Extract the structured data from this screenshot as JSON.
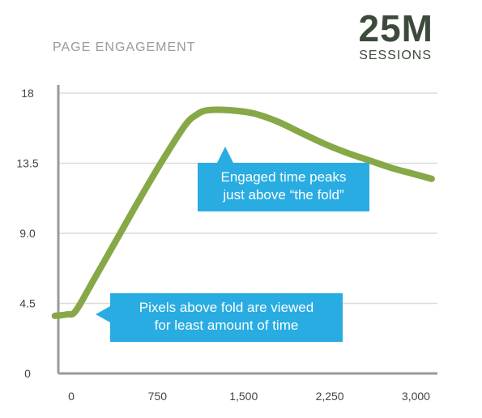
{
  "header": {
    "title": "PAGE ENGAGEMENT",
    "stat_value": "25M",
    "stat_label": "SESSIONS"
  },
  "annotations": [
    {
      "line1": "Engaged time peaks",
      "line2": "just above “the fold”"
    },
    {
      "line1": "Pixels above fold are viewed",
      "line2": "for least amount of time"
    }
  ],
  "colors": {
    "line": "#86a846",
    "callout": "#28ace2",
    "grid": "#dcdcdc",
    "axis": "#9a9a9a"
  },
  "chart_data": {
    "type": "line",
    "title": "PAGE ENGAGEMENT",
    "xlabel": "",
    "ylabel": "",
    "xlim": [
      0,
      3300
    ],
    "ylim": [
      0,
      18
    ],
    "xticks": [
      0,
      750,
      1500,
      2250,
      3000
    ],
    "xtick_labels": [
      "0",
      "750",
      "1,500",
      "2,250",
      "3,000"
    ],
    "yticks": [
      0,
      4.5,
      9,
      13.5,
      18
    ],
    "ytick_labels": [
      "0",
      "4.5",
      "9.0",
      "13.5",
      "18"
    ],
    "grid": "horizontal",
    "series": [
      {
        "x": [
          -30,
          80,
          150,
          300,
          500,
          700,
          900,
          1100,
          1200,
          1300,
          1500,
          1700,
          1900,
          2100,
          2300,
          2500,
          2700,
          2900,
          3100,
          3250
        ],
        "y": [
          3.7,
          3.8,
          4.0,
          5.9,
          8.5,
          11.1,
          13.6,
          15.9,
          16.6,
          16.9,
          16.9,
          16.7,
          16.2,
          15.5,
          14.8,
          14.2,
          13.7,
          13.2,
          12.8,
          12.5
        ]
      }
    ]
  }
}
